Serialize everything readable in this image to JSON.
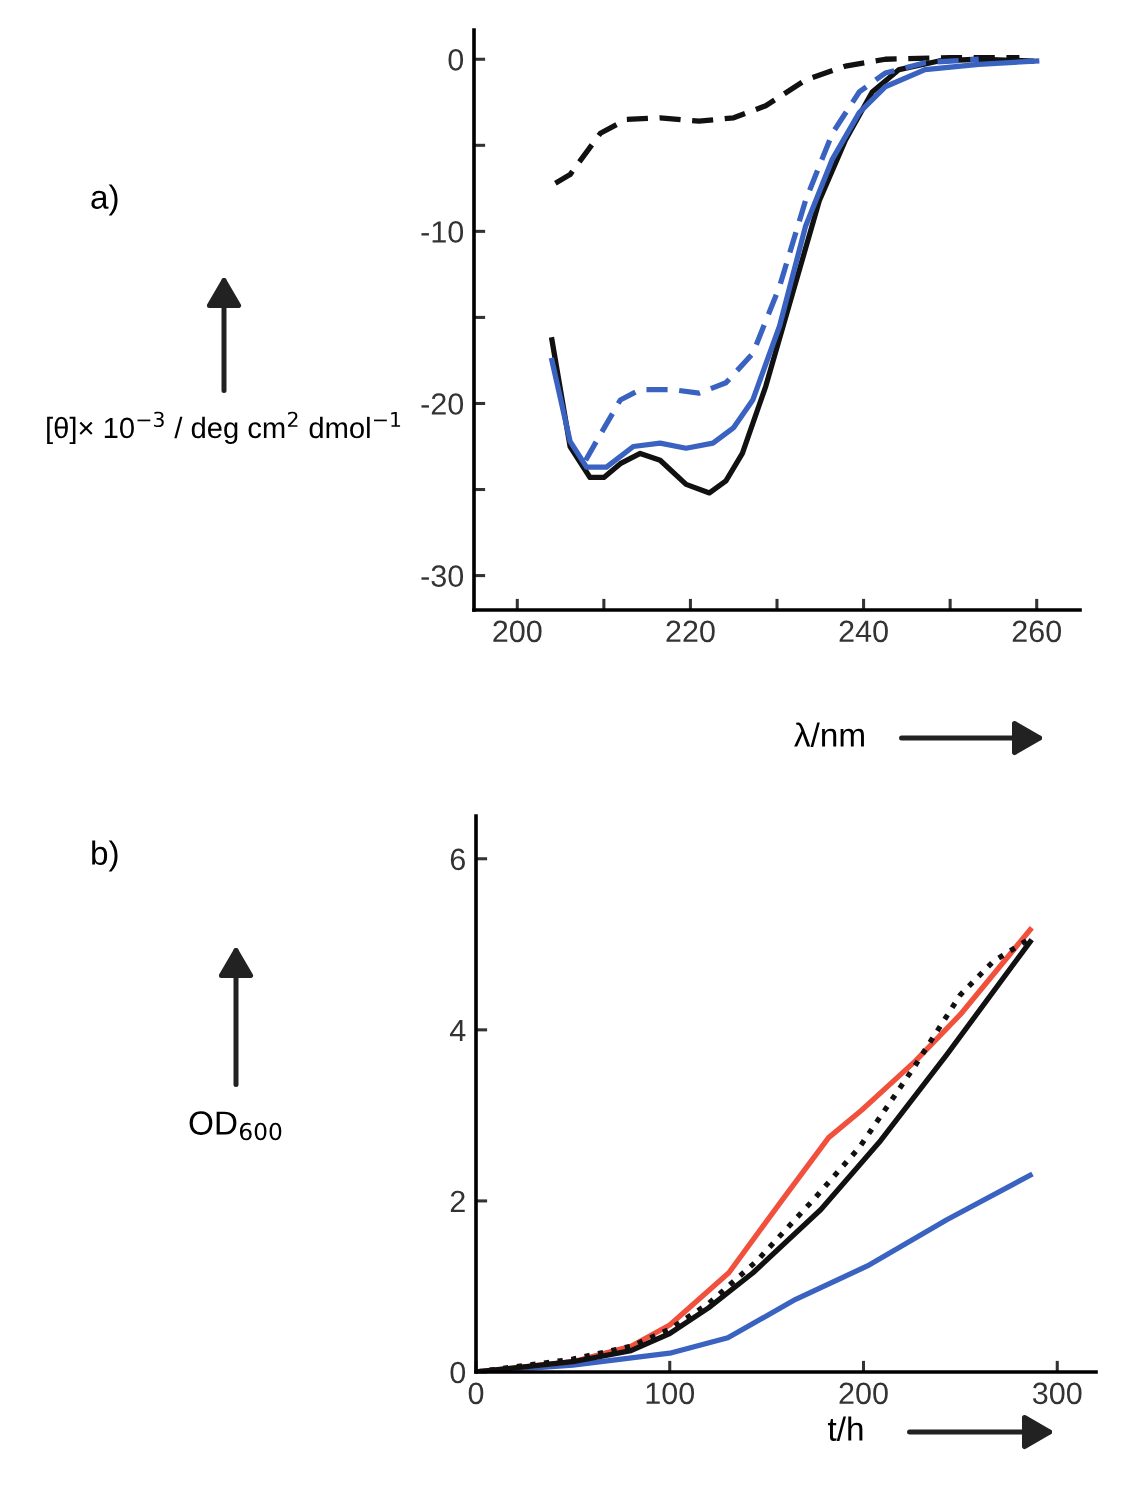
{
  "chart_data": [
    {
      "type": "line",
      "annotations": [
        "a)"
      ],
      "xlabel": "λ/nm",
      "ylabel": "[θ]× 10$^{−3}$ / deg cm$^{2}$ dmol$^{−1}$",
      "xlim": [
        195,
        265
      ],
      "ylim": [
        -32,
        1.7
      ],
      "xticks": [
        200,
        {
          "value": 210,
          "label": null
        },
        220,
        {
          "value": 230,
          "label": null
        },
        240,
        {
          "value": 250,
          "label": null
        },
        260
      ],
      "yticks": [
        0,
        {
          "value": -5,
          "label": null
        },
        -10,
        {
          "value": -15,
          "label": null
        },
        -20,
        {
          "value": -25,
          "label": null
        },
        -30
      ],
      "grid": false,
      "legend": false,
      "marker": "none",
      "series": [
        {
          "color": "#111111",
          "line_style": "dashed",
          "x": [
            204.4,
            206.1,
            209.6,
            212.6,
            216.5,
            221,
            225,
            228.7,
            233.3,
            237.9,
            242.5,
            250,
            258
          ],
          "values": [
            -7.2,
            -6.7,
            -4.3,
            -3.5,
            -3.4,
            -3.6,
            -3.4,
            -2.7,
            -1.2,
            -0.4,
            0,
            0.1,
            0.1
          ]
        },
        {
          "color": "#111111",
          "line_style": "solid",
          "x": [
            204,
            206.1,
            208.4,
            210,
            211.9,
            214.2,
            216.5,
            219.5,
            222.2,
            224.1,
            226,
            228.7,
            231.8,
            234.9,
            237.9,
            241,
            244.1,
            248.7,
            253.3,
            259.4
          ],
          "values": [
            -16.3,
            -22.5,
            -24.3,
            -24.3,
            -23.5,
            -22.9,
            -23.3,
            -24.7,
            -25.2,
            -24.5,
            -22.9,
            -19,
            -13.6,
            -8.2,
            -4.7,
            -1.9,
            -0.6,
            -0.1,
            0,
            -0.1
          ]
        },
        {
          "color": "#3a62c0",
          "line_style": "solid",
          "x": [
            204,
            206.1,
            208,
            210.3,
            213.4,
            216.5,
            219.5,
            222.6,
            225,
            227.2,
            230.3,
            233.3,
            236.4,
            239.5,
            242.5,
            247.1,
            253.3,
            260
          ],
          "values": [
            -17.5,
            -22.2,
            -23.7,
            -23.7,
            -22.5,
            -22.3,
            -22.6,
            -22.3,
            -21.4,
            -19.8,
            -15.5,
            -9.7,
            -5.8,
            -3.1,
            -1.6,
            -0.6,
            -0.3,
            -0.1
          ]
        },
        {
          "color": "#3a62c0",
          "line_style": "dashed",
          "x": [
            207.9,
            209.6,
            211.9,
            214.2,
            218,
            221,
            224.1,
            227.2,
            230.3,
            233.3,
            236.4,
            239.5,
            242.5,
            247.1,
            253.3
          ],
          "values": [
            -23.3,
            -21.8,
            -19.8,
            -19.2,
            -19.2,
            -19.4,
            -18.8,
            -17.1,
            -13.2,
            -8.2,
            -4.3,
            -1.9,
            -0.8,
            -0.2,
            0
          ]
        }
      ]
    },
    {
      "type": "line",
      "annotations": [
        "b)"
      ],
      "xlabel": "t/h",
      "ylabel": "OD$_{600}$",
      "xlim": [
        0,
        320
      ],
      "ylim": [
        0,
        6.5
      ],
      "xticks": [
        0,
        100,
        200,
        300
      ],
      "yticks": [
        0,
        2,
        4,
        6
      ],
      "grid": false,
      "legend": false,
      "marker": "none",
      "series": [
        {
          "color": "#3a62c0",
          "line_style": "solid",
          "x": [
            0,
            50,
            100,
            130,
            165,
            202,
            243,
            286
          ],
          "values": [
            0,
            0.08,
            0.22,
            0.4,
            0.85,
            1.24,
            1.78,
            2.3
          ]
        },
        {
          "color": "#f0503c",
          "line_style": "solid",
          "x": [
            0,
            50,
            80,
            100,
            130.5,
            158,
            182,
            199,
            227,
            250,
            286
          ],
          "values": [
            0,
            0.12,
            0.3,
            0.55,
            1.16,
            2.01,
            2.74,
            3.06,
            3.64,
            4.18,
            5.17
          ]
        },
        {
          "color": "#111111",
          "line_style": "solid",
          "x": [
            0,
            50,
            80,
            100,
            120,
            143,
            178,
            209,
            243,
            286
          ],
          "values": [
            0,
            0.12,
            0.25,
            0.45,
            0.75,
            1.16,
            1.9,
            2.71,
            3.71,
            5.03
          ]
        },
        {
          "color": "#111111",
          "line_style": "dotted",
          "x": [
            0,
            50,
            80,
            100,
            120,
            145,
            174,
            198,
            226,
            250,
            267,
            286
          ],
          "values": [
            0,
            0.15,
            0.3,
            0.5,
            0.8,
            1.3,
            2.01,
            2.63,
            3.56,
            4.41,
            4.8,
            5.07
          ]
        }
      ]
    }
  ]
}
